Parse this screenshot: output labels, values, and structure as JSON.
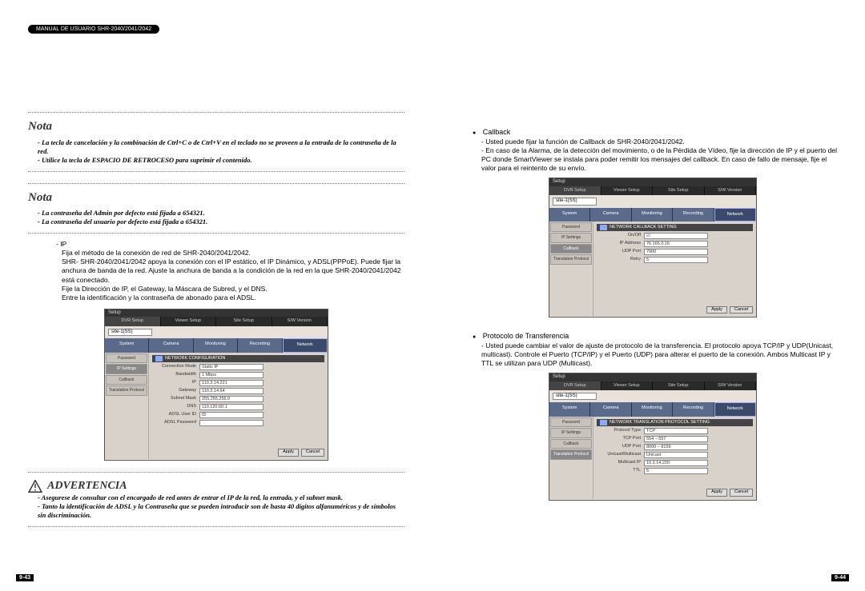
{
  "manual_header": "MANUAL DE USUARIO SHR-2040/2041/2042",
  "page_left_num": "9-43",
  "page_right_num": "9-44",
  "nota1": {
    "title": "Nota",
    "lines": [
      "- La tecla de cancelación y la combinación de Ctrl+C o de Ctrl+V en el teclado no se proveen a la entrada de la contraseña de la red.",
      "- Utilice la tecla de ESPACIO DE RETROCESO para suprimir el contenido."
    ]
  },
  "nota2": {
    "title": "Nota",
    "lines": [
      "- La contraseña del Admin por defecto está fijada a 654321.",
      "- La contraseña del usuario por defecto está fijada a 654321."
    ]
  },
  "ip_section": {
    "bullet": "- IP",
    "desc": "Fija el método de la conexión de red de SHR-2040/2041/2042.\nSHR- SHR-2040/2041/2042 apoya la conexión con el IP estático, el IP Dinámico, y ADSL(PPPoE). Puede fijar la anchura de banda de la red. Ajuste la anchura de banda a la condición de la red en la que SHR-2040/2041/2042 está conectado.\nFije la Dirección de IP, el Gateway, la Máscara de Subred, y el DNS.\nEntre la identificación y la contraseña de abonado para el ADSL."
  },
  "advert": {
    "title": "ADVERTENCIA",
    "lines": [
      "- Asegurese de consultar con el encargado de red antes de entrar el IP de la red, la entrada, y el subnet mask.",
      "- Tanto la identificación de ADSL y la Contraseña que se pueden introducir son de hasta 40 dígitos alfanuméricos y de símbolos sin discriminación."
    ]
  },
  "callback": {
    "title": "Callback",
    "dash": "- Usted puede fijar la función de Callback de SHR-2040/2041/2042.",
    "desc": "- En caso de la Alarma, de la detección del movimiento, o de la Pérdida de Vídeo, fije la dirección de IP y el puerto del PC donde SmartViewer se instala para poder remitir los mensajes del callback. En caso de fallo de mensaje, fije el valor para el reintento de su envío."
  },
  "proto": {
    "title": "Protocolo de Transferencia",
    "desc": "- Usted puede cambiar el valor de ajuste de protocolo de la transferencia. El protocolo apoya TCP/IP y UDP(Unicast, multicast). Controle el Puerto (TCP/IP) y el Puerto (UDP) para alterar el puerto de la conexión. Ambos Multicast IP y TTL se utilizan para UDP (Multicast)."
  },
  "ui_common": {
    "setup_title": "Setup",
    "tabs_top": [
      "DVR Setup",
      "Viewer Setup",
      "Site Setup",
      "S/W Version"
    ],
    "dropdown": "site-1(SS)",
    "tabs_mid": [
      "System",
      "Camera",
      "Monitoring",
      "Recording",
      "Network"
    ],
    "side_btns": [
      "Password",
      "IP Settings",
      "Callback",
      "Translation Protocol"
    ],
    "btn_apply": "Apply",
    "btn_cancel": "Cancel"
  },
  "ui1": {
    "header": "NETWORK CONFIGURATION",
    "rows": [
      {
        "label": "Connection Mode",
        "value": "Static IP"
      },
      {
        "label": "Bandwidth",
        "value": "1 Mbps"
      },
      {
        "label": "IP",
        "value": "110.3.14.221"
      },
      {
        "label": "Gateway",
        "value": "110.3.14.64"
      },
      {
        "label": "Subnet Mask",
        "value": "255.255.255.0"
      },
      {
        "label": "DNS",
        "value": "110.120.60.1"
      },
      {
        "label": "ADSL User ID",
        "value": "ID"
      },
      {
        "label": "ADSL Password",
        "value": ""
      }
    ]
  },
  "ui2": {
    "header": "NETWORK CALLBACK SETTING",
    "rows": [
      {
        "label": "On/Off",
        "value": "☑"
      },
      {
        "label": "IP Address",
        "value": "76.165.0.16"
      },
      {
        "label": "UDP Port",
        "value": "7900"
      },
      {
        "label": "Retry",
        "value": "5"
      }
    ]
  },
  "ui3": {
    "header": "NETWORK TRANSLATION PROTOCOL SETTING",
    "rows": [
      {
        "label": "Protocol Type",
        "value": "TCP"
      },
      {
        "label": "TCP Port",
        "value": "554 – 557"
      },
      {
        "label": "UDP Port",
        "value": "8000 – 8159"
      },
      {
        "label": "Unicast/Multicast",
        "value": "Unicast"
      },
      {
        "label": "Multicast IP",
        "value": "10.3.14.220"
      },
      {
        "label": "TTL",
        "value": "5"
      }
    ]
  }
}
